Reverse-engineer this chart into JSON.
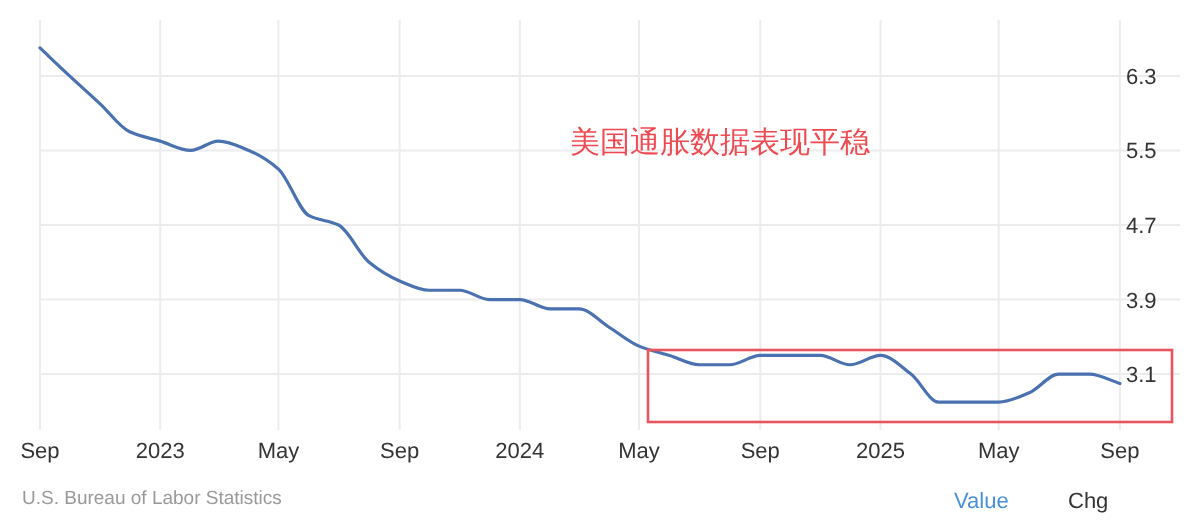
{
  "chart_data": {
    "type": "line",
    "x": [
      "2022-09",
      "2022-10",
      "2022-11",
      "2022-12",
      "2023-01",
      "2023-02",
      "2023-03",
      "2023-04",
      "2023-05",
      "2023-06",
      "2023-07",
      "2023-08",
      "2023-09",
      "2023-10",
      "2023-11",
      "2023-12",
      "2024-01",
      "2024-02",
      "2024-03",
      "2024-04",
      "2024-05",
      "2024-06",
      "2024-07",
      "2024-08",
      "2024-09",
      "2024-10",
      "2024-11",
      "2024-12",
      "2025-01",
      "2025-02",
      "2025-03",
      "2025-04",
      "2025-05",
      "2025-06",
      "2025-07",
      "2025-08",
      "2025-09"
    ],
    "series": [
      {
        "color": "#4a72b0",
        "values": [
          6.6,
          6.3,
          6.0,
          5.7,
          5.6,
          5.5,
          5.6,
          5.5,
          5.3,
          4.8,
          4.7,
          4.3,
          4.1,
          4.0,
          4.0,
          3.9,
          3.9,
          3.8,
          3.8,
          3.6,
          3.4,
          3.3,
          3.2,
          3.2,
          3.3,
          3.3,
          3.3,
          3.2,
          3.3,
          3.1,
          2.8,
          2.8,
          2.8,
          2.9,
          3.1,
          3.1,
          3.0
        ]
      }
    ],
    "xlim": [
      "2022-09",
      "2025-11"
    ],
    "ylim": [
      2.5,
      6.9
    ],
    "xticks": [
      {
        "value": "2022-09",
        "label": "Sep"
      },
      {
        "value": "2023-01",
        "label": "2023"
      },
      {
        "value": "2023-05",
        "label": "May"
      },
      {
        "value": "2023-09",
        "label": "Sep"
      },
      {
        "value": "2024-01",
        "label": "2024"
      },
      {
        "value": "2024-05",
        "label": "May"
      },
      {
        "value": "2024-09",
        "label": "Sep"
      },
      {
        "value": "2025-01",
        "label": "2025"
      },
      {
        "value": "2025-05",
        "label": "May"
      },
      {
        "value": "2025-09",
        "label": "Sep"
      }
    ],
    "yticks": [
      3.1,
      3.9,
      4.7,
      5.5,
      6.3
    ],
    "grid": true,
    "annotations": [
      "美国通胀数据表现平稳",
      "U.S. Bureau of Labor Statistics",
      "Value",
      "Chg"
    ]
  }
}
